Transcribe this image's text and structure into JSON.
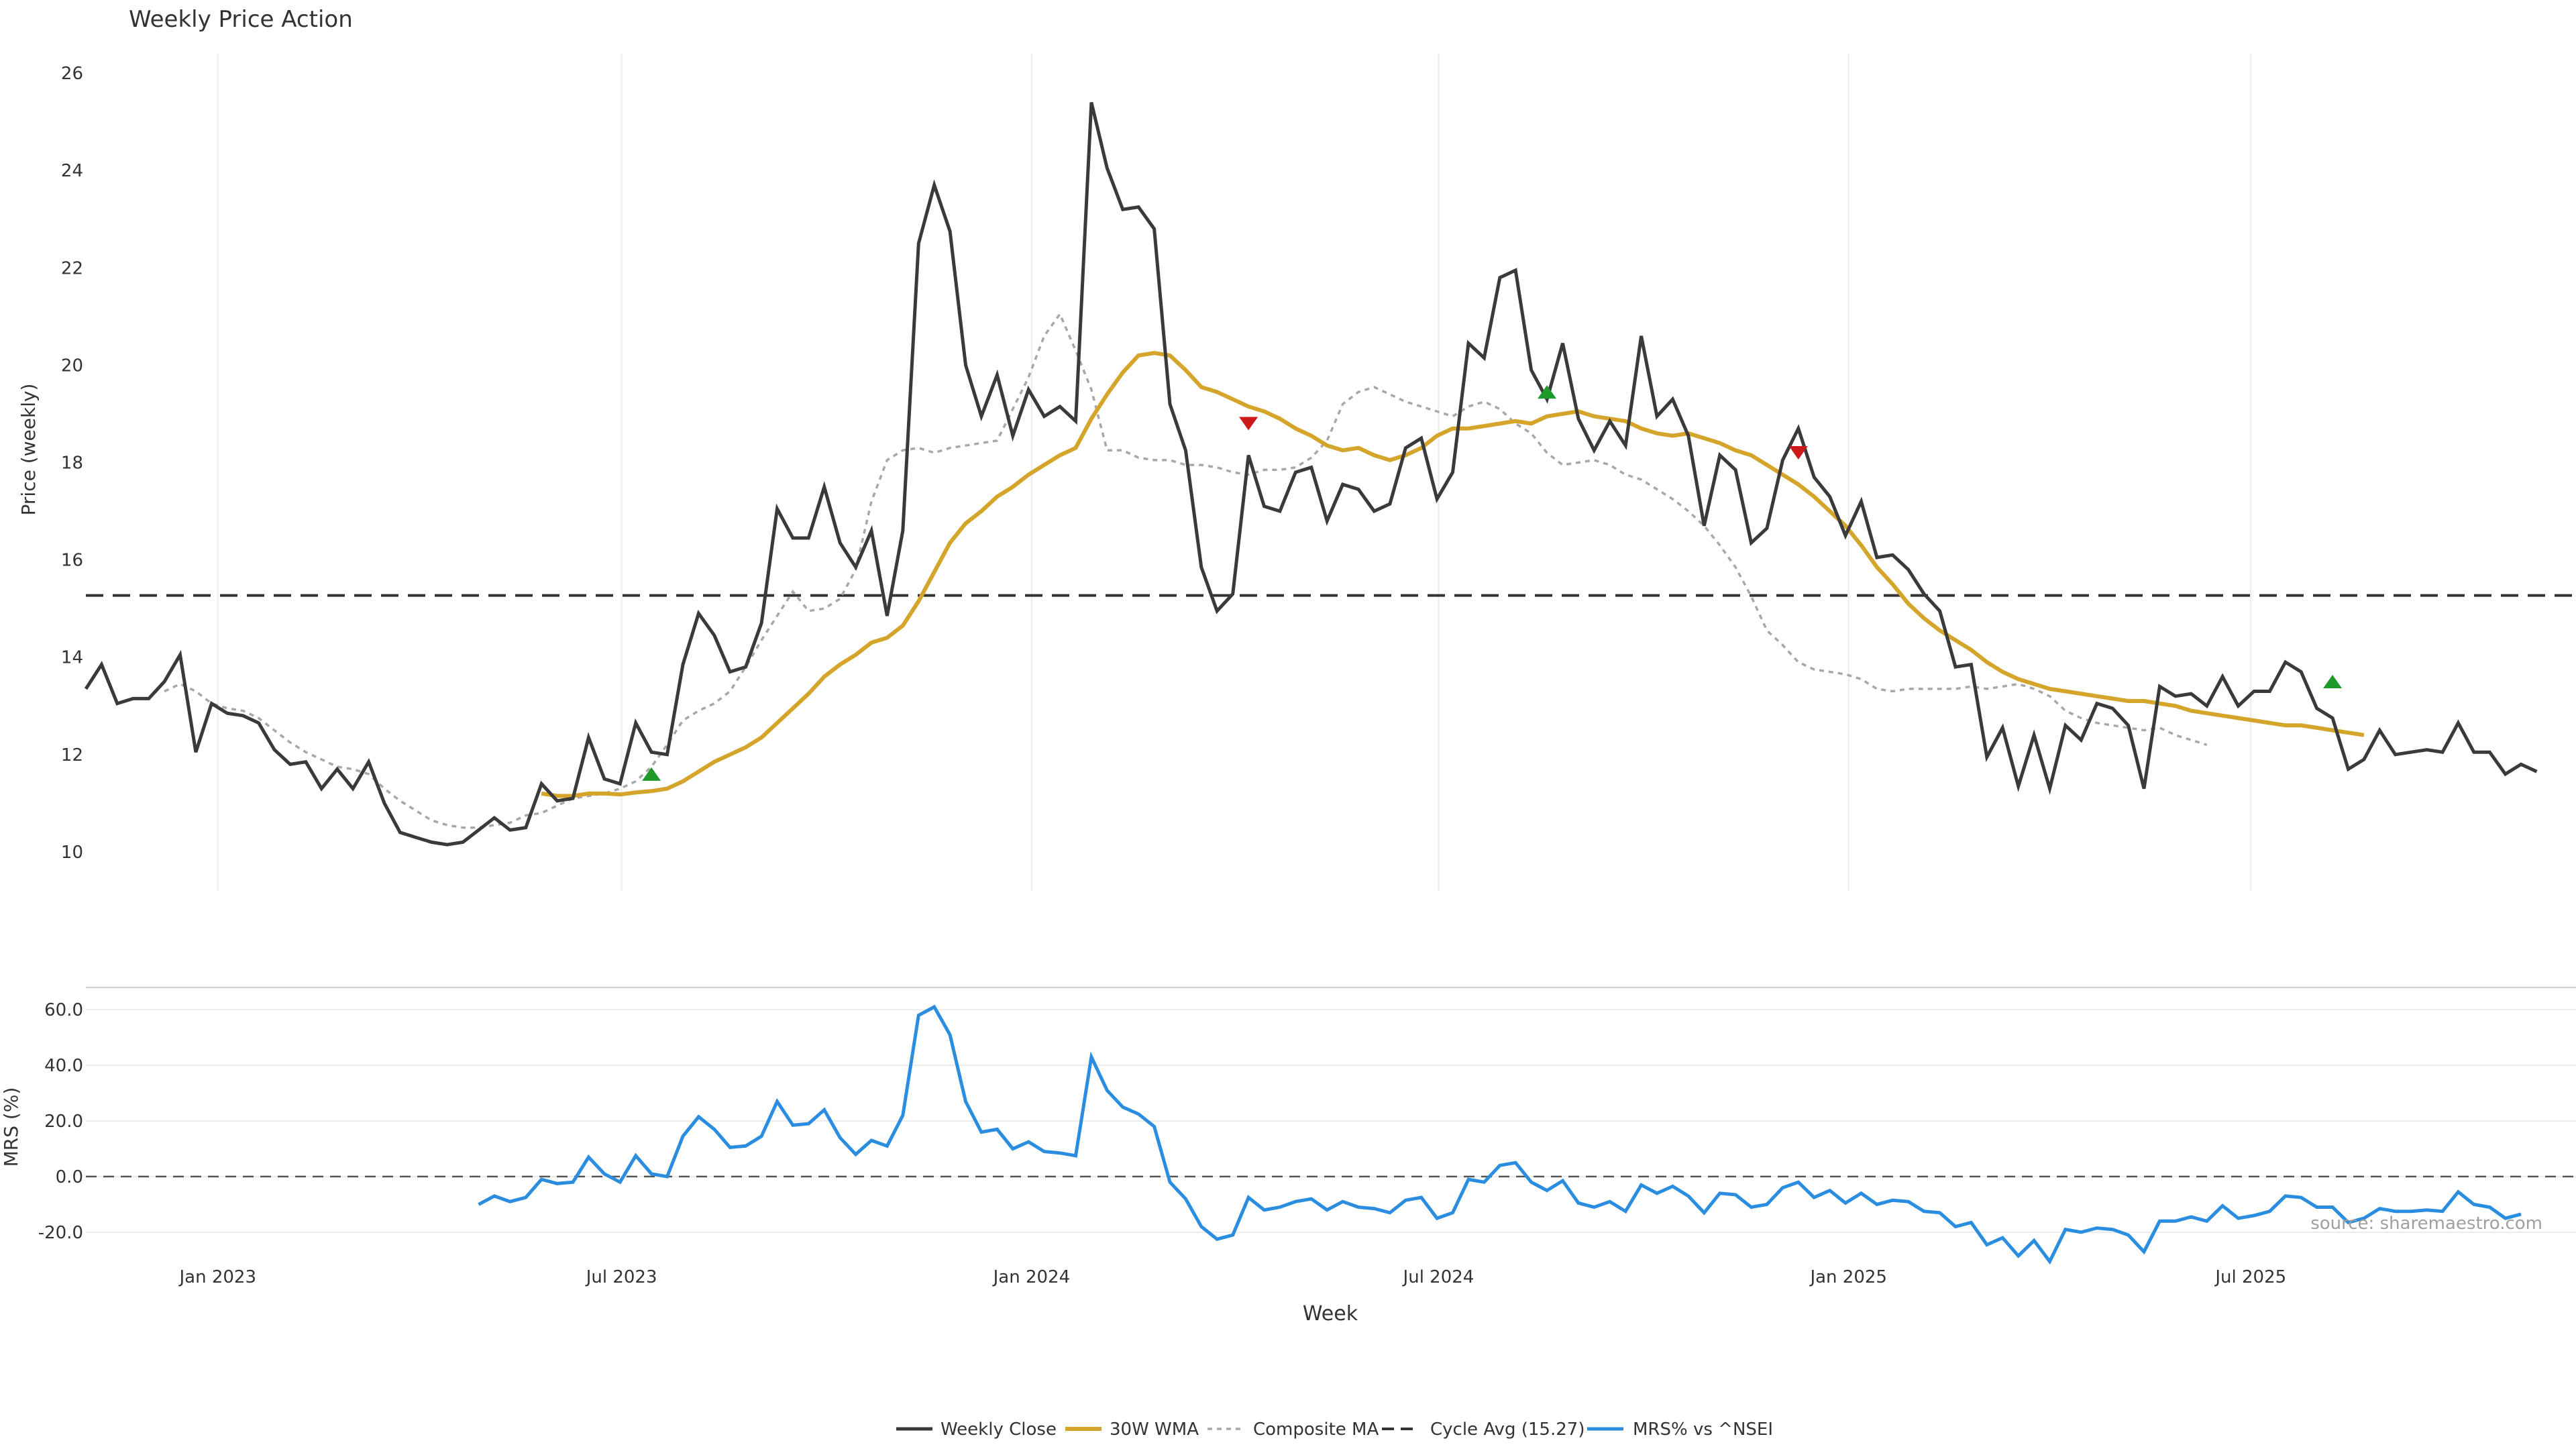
{
  "chart_data": {
    "type": "line",
    "title": "Weekly Price Action",
    "source_note": "source: sharemaestro.com",
    "xlabel": "Week",
    "x_ticks": [
      "Jan 2023",
      "Jul 2023",
      "Jan 2024",
      "Jul 2024",
      "Jan 2025",
      "Jul 2025"
    ],
    "price_panel": {
      "ylabel": "Price (weekly)",
      "ylim": [
        9.2,
        26.4
      ],
      "y_ticks": [
        "10",
        "12",
        "14",
        "16",
        "18",
        "20",
        "22",
        "24",
        "26"
      ],
      "y_tick_values": [
        10,
        12,
        14,
        16,
        18,
        20,
        22,
        24,
        26
      ],
      "cycle_avg": 15.27,
      "series": [
        {
          "name": "Weekly Close",
          "color": "#3a3a3a",
          "start": 0,
          "values": [
            13.35,
            13.85,
            13.05,
            13.15,
            13.15,
            13.5,
            14.05,
            12.05,
            13.05,
            12.85,
            12.8,
            12.65,
            12.1,
            11.8,
            11.85,
            11.3,
            11.7,
            11.3,
            11.85,
            11.0,
            10.4,
            10.3,
            10.2,
            10.15,
            10.2,
            10.45,
            10.7,
            10.45,
            10.5,
            11.4,
            11.05,
            11.1,
            12.35,
            11.5,
            11.4,
            12.65,
            12.05,
            12.0,
            13.85,
            14.9,
            14.45,
            13.7,
            13.8,
            14.7,
            17.05,
            16.45,
            16.45,
            17.5,
            16.35,
            15.85,
            16.6,
            14.85,
            16.6,
            22.5,
            23.7,
            22.75,
            20.0,
            18.95,
            19.8,
            18.55,
            19.5,
            18.95,
            19.15,
            18.85,
            25.4,
            24.05,
            23.2,
            23.25,
            22.8,
            19.2,
            18.25,
            15.85,
            14.95,
            15.3,
            18.15,
            17.1,
            17.0,
            17.8,
            17.9,
            16.8,
            17.55,
            17.45,
            17.0,
            17.15,
            18.3,
            18.5,
            17.25,
            17.8,
            20.45,
            20.15,
            21.8,
            21.95,
            19.9,
            19.3,
            20.45,
            18.9,
            18.25,
            18.85,
            18.35,
            20.6,
            18.95,
            19.3,
            18.55,
            16.7,
            18.15,
            17.85,
            16.35,
            16.65,
            18.05,
            18.7,
            17.7,
            17.3,
            16.5,
            17.2,
            16.05,
            16.1,
            15.8,
            15.3,
            14.95,
            13.8,
            13.85,
            11.95,
            12.55,
            11.35,
            12.4,
            11.3,
            12.6,
            12.3,
            13.05,
            12.95,
            12.6,
            11.3,
            13.4,
            13.2,
            13.25,
            13.0,
            13.6,
            13.0,
            13.3,
            13.3,
            13.9,
            13.7,
            12.95,
            12.75,
            11.7,
            11.9,
            12.5,
            12.0,
            12.05,
            12.1,
            12.05,
            12.65,
            12.05,
            12.05,
            11.6,
            11.8,
            11.65
          ]
        },
        {
          "name": "30W WMA",
          "color": "#d4a52a",
          "start": 29,
          "values": [
            11.2,
            11.15,
            11.15,
            11.2,
            11.2,
            11.18,
            11.22,
            11.25,
            11.3,
            11.45,
            11.65,
            11.85,
            12.0,
            12.15,
            12.35,
            12.65,
            12.95,
            13.25,
            13.6,
            13.85,
            14.05,
            14.3,
            14.4,
            14.65,
            15.15,
            15.75,
            16.35,
            16.75,
            17.0,
            17.3,
            17.5,
            17.75,
            17.95,
            18.15,
            18.3,
            18.9,
            19.4,
            19.85,
            20.2,
            20.25,
            20.2,
            19.9,
            19.55,
            19.45,
            19.3,
            19.15,
            19.05,
            18.9,
            18.7,
            18.55,
            18.35,
            18.25,
            18.3,
            18.15,
            18.05,
            18.15,
            18.3,
            18.55,
            18.7,
            18.7,
            18.75,
            18.8,
            18.85,
            18.8,
            18.95,
            19.0,
            19.05,
            18.95,
            18.9,
            18.85,
            18.7,
            18.6,
            18.55,
            18.6,
            18.5,
            18.4,
            18.25,
            18.15,
            17.95,
            17.75,
            17.55,
            17.3,
            17.0,
            16.7,
            16.3,
            15.85,
            15.5,
            15.1,
            14.8,
            14.55,
            14.35,
            14.15,
            13.9,
            13.7,
            13.55,
            13.45,
            13.35,
            13.3,
            13.25,
            13.2,
            13.15,
            13.1,
            13.1,
            13.05,
            13.0,
            12.9,
            12.85,
            12.8,
            12.75,
            12.7,
            12.65,
            12.6,
            12.6,
            12.55,
            12.5,
            12.45,
            12.4
          ]
        },
        {
          "name": "Composite MA",
          "color": "#a8a8a8",
          "start": 5,
          "values": [
            13.3,
            13.45,
            13.3,
            13.05,
            12.95,
            12.9,
            12.75,
            12.5,
            12.25,
            12.05,
            11.9,
            11.75,
            11.7,
            11.6,
            11.3,
            11.05,
            10.85,
            10.65,
            10.55,
            10.5,
            10.5,
            10.55,
            10.6,
            10.75,
            10.8,
            10.95,
            11.1,
            11.15,
            11.2,
            11.3,
            11.45,
            11.75,
            12.2,
            12.7,
            12.9,
            13.05,
            13.3,
            13.8,
            14.35,
            14.85,
            15.35,
            14.95,
            15.0,
            15.2,
            15.8,
            17.2,
            18.05,
            18.25,
            18.3,
            18.2,
            18.3,
            18.35,
            18.4,
            18.45,
            19.1,
            19.75,
            20.6,
            21.05,
            20.3,
            19.5,
            18.25,
            18.25,
            18.1,
            18.05,
            18.05,
            17.95,
            17.95,
            17.9,
            17.8,
            17.75,
            17.85,
            17.85,
            17.9,
            18.1,
            18.45,
            19.2,
            19.45,
            19.55,
            19.4,
            19.25,
            19.15,
            19.05,
            18.95,
            19.15,
            19.25,
            19.1,
            18.8,
            18.6,
            18.2,
            17.95,
            18.0,
            18.05,
            17.95,
            17.75,
            17.65,
            17.45,
            17.25,
            17.0,
            16.7,
            16.3,
            15.85,
            15.25,
            14.55,
            14.25,
            13.9,
            13.75,
            13.7,
            13.65,
            13.55,
            13.35,
            13.3,
            13.35,
            13.35,
            13.35,
            13.35,
            13.4,
            13.35,
            13.4,
            13.45,
            13.35,
            13.2,
            12.9,
            12.75,
            12.65,
            12.6,
            12.55,
            12.5,
            12.55,
            12.4,
            12.3,
            12.2
          ]
        }
      ],
      "signals_up": [
        {
          "x": 36,
          "y": 11.6
        },
        {
          "x": 93,
          "y": 19.45
        },
        {
          "x": 143,
          "y": 13.5
        }
      ],
      "signals_down": [
        {
          "x": 74,
          "y": 18.8
        },
        {
          "x": 109,
          "y": 18.2
        }
      ]
    },
    "mrs_panel": {
      "ylabel": "MRS (%)",
      "ylim": [
        -28,
        68
      ],
      "y_ticks": [
        "60.0",
        "40.0",
        "20.0",
        "0.0",
        "-20.0"
      ],
      "y_tick_values": [
        60,
        40,
        20,
        0,
        -20
      ],
      "series": {
        "name": "MRS% vs ^NSEI",
        "color": "#2b8de0",
        "start": 25,
        "values": [
          -10,
          -7,
          -9,
          -7.5,
          -1,
          -2.5,
          -2,
          7,
          1,
          -2,
          7.5,
          1,
          0,
          14.5,
          21.5,
          17,
          10.5,
          11,
          14.5,
          27,
          18.5,
          19,
          24,
          14,
          8,
          13,
          11,
          22,
          58,
          61,
          51,
          27,
          16,
          17,
          10,
          12.5,
          9,
          8.5,
          7.5,
          43,
          31,
          25,
          22.5,
          18,
          -2,
          -8,
          -18,
          -22.5,
          -21,
          -7.5,
          -12,
          -11,
          -9,
          -8,
          -12,
          -9,
          -11,
          -11.5,
          -13,
          -8.5,
          -7.5,
          -15,
          -13,
          -1,
          -2,
          4,
          5,
          -2,
          -5,
          -1.5,
          -9.5,
          -11,
          -9,
          -12.5,
          -3,
          -6,
          -3.5,
          -7,
          -13,
          -6,
          -6.5,
          -11,
          -10,
          -4,
          -2,
          -7.5,
          -5,
          -9.5,
          -6,
          -10,
          -8.5,
          -9,
          -12.5,
          -13,
          -18,
          -16.5,
          -24.5,
          -22,
          -28.5,
          -23,
          -30.5,
          -19,
          -20,
          -18.5,
          -19,
          -21,
          -27,
          -16,
          -16,
          -14.5,
          -16,
          -10.5,
          -15,
          -14,
          -12.5,
          -7,
          -7.5,
          -11,
          -11,
          -16.5,
          -15,
          -11.5,
          -12.5,
          -12.5,
          -12,
          -12.5,
          -5.5,
          -10,
          -11,
          -15,
          -13.5
        ]
      }
    },
    "legend": [
      "Weekly Close",
      "30W WMA",
      "Composite MA",
      "Cycle Avg (15.27)",
      "MRS% vs ^NSEI"
    ]
  }
}
